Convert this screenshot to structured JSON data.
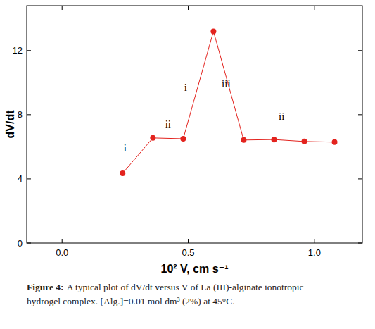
{
  "chart_data": {
    "type": "line",
    "x_label": "10² V, cm s⁻¹",
    "y_label": "dV/dt",
    "x": [
      0.24,
      0.36,
      0.48,
      0.6,
      0.72,
      0.84,
      0.96,
      1.08
    ],
    "values": [
      4.35,
      6.55,
      6.5,
      13.2,
      6.42,
      6.45,
      6.33,
      6.29
    ],
    "color": "#e3231e",
    "marker": "circle",
    "line_style": "solid",
    "xlim": [
      -0.14,
      1.19
    ],
    "ylim": [
      0,
      14.8
    ],
    "xticks": [
      {
        "value": 0,
        "label": "0.0"
      },
      {
        "value": 0.5,
        "label": "0.5"
      },
      {
        "value": 1,
        "label": "1.0"
      }
    ],
    "yticks": [
      0,
      4,
      8,
      12
    ],
    "grid": false,
    "annotations": [
      {
        "text": "i",
        "x": 0.25,
        "y": 5.7
      },
      {
        "text": "ii",
        "x": 0.42,
        "y": 7.2
      },
      {
        "text": "i",
        "x": 0.49,
        "y": 9.5
      },
      {
        "text": "iii",
        "x": 0.65,
        "y": 9.7
      },
      {
        "text": "ii",
        "x": 0.87,
        "y": 7.7
      }
    ],
    "caption_label": "Figure 4:",
    "caption_lines": [
      "A typical plot of dV/dt versus V of La (III)-alginate ionotropic",
      "hydrogel complex. [Alg.]=0.01 mol dm³ (2%) at 45°C."
    ]
  }
}
